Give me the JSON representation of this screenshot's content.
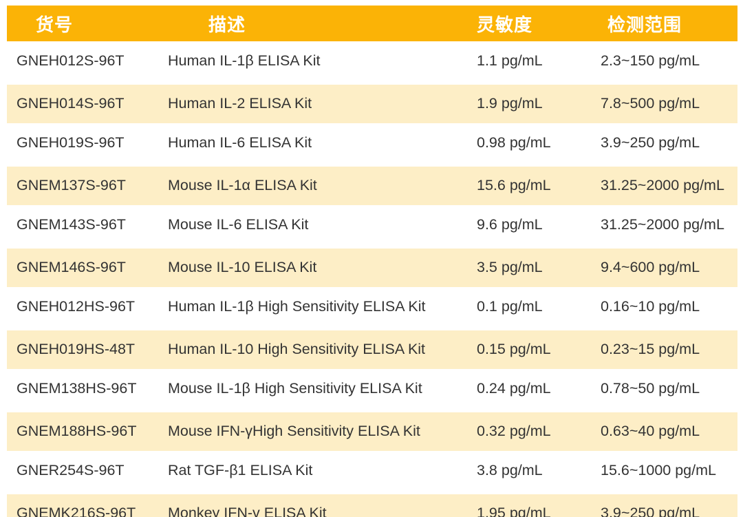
{
  "table": {
    "columns": [
      {
        "label": "货号"
      },
      {
        "label": "描述"
      },
      {
        "label": "灵敏度"
      },
      {
        "label": "检测范围"
      }
    ],
    "rows": [
      [
        "GNEH012S-96T",
        "Human IL-1β ELISA Kit",
        "1.1 pg/mL",
        "2.3~150 pg/mL"
      ],
      [
        "GNEH014S-96T",
        "Human IL-2 ELISA Kit",
        "1.9 pg/mL",
        "7.8~500 pg/mL"
      ],
      [
        "GNEH019S-96T",
        "Human IL-6 ELISA Kit",
        "0.98 pg/mL",
        "3.9~250 pg/mL"
      ],
      [
        "GNEM137S-96T",
        "Mouse IL-1α ELISA Kit",
        "15.6 pg/mL",
        "31.25~2000 pg/mL"
      ],
      [
        "GNEM143S-96T",
        "Mouse IL-6 ELISA Kit",
        "9.6 pg/mL",
        "31.25~2000 pg/mL"
      ],
      [
        "GNEM146S-96T",
        "Mouse IL-10 ELISA Kit",
        "3.5 pg/mL",
        "9.4~600 pg/mL"
      ],
      [
        "GNEH012HS-96T",
        "Human IL-1β High Sensitivity ELISA Kit",
        "0.1 pg/mL",
        "0.16~10 pg/mL"
      ],
      [
        "GNEH019HS-48T",
        "Human IL-10 High Sensitivity ELISA Kit",
        "0.15 pg/mL",
        "0.23~15 pg/mL"
      ],
      [
        "GNEM138HS-96T",
        "Mouse IL-1β High Sensitivity ELISA Kit",
        "0.24 pg/mL",
        "0.78~50 pg/mL"
      ],
      [
        "GNEM188HS-96T",
        "Mouse IFN-γHigh Sensitivity ELISA Kit",
        "0.32 pg/mL",
        "0.63~40 pg/mL"
      ],
      [
        "GNER254S-96T",
        "Rat TGF-β1 ELISA Kit",
        "3.8 pg/mL",
        "15.6~1000 pg/mL"
      ],
      [
        "GNEMK216S-96T",
        "Monkey IFN-γ ELISA Kit",
        "1.95 pg/mL",
        "3.9~250 pg/mL"
      ]
    ]
  },
  "colors": {
    "header_bg": "#FBB306",
    "stripe_bg": "#FDEEC6",
    "text": "#333333",
    "header_text": "#FFFFFF"
  }
}
